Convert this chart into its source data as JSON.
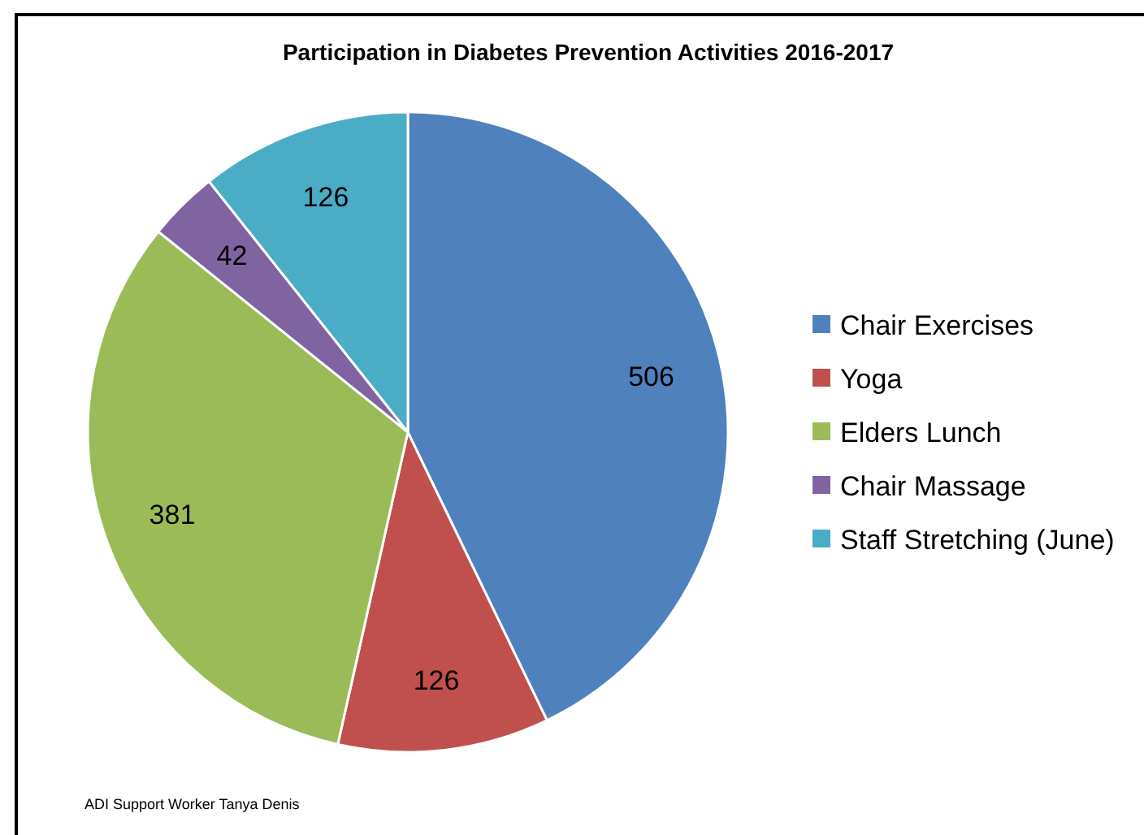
{
  "chart_data": {
    "type": "pie",
    "title": "Participation in Diabetes Prevention Activities 2016-2017",
    "categories": [
      "Chair Exercises",
      "Yoga",
      "Elders Lunch",
      "Chair Massage",
      "Staff Stretching (June)"
    ],
    "values": [
      506,
      126,
      381,
      42,
      126
    ],
    "colors": [
      "#4f81bd",
      "#c0504d",
      "#9bbb59",
      "#8064a2",
      "#4bacc6"
    ],
    "data_labels": true,
    "legend": "right",
    "annotations": [
      "ADI Support Worker Tanya Denis"
    ]
  }
}
